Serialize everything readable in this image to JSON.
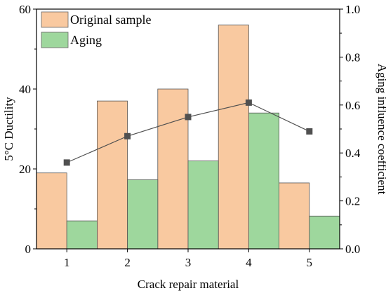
{
  "chart_data": {
    "type": "bar",
    "categories": [
      "1",
      "2",
      "3",
      "4",
      "5"
    ],
    "series": [
      {
        "name": "Original sample",
        "values": [
          19,
          37,
          40,
          56,
          16.5
        ],
        "color": "#f9c9a0",
        "axis": "left"
      },
      {
        "name": "Aging",
        "values": [
          7,
          17.3,
          22,
          34,
          8.2
        ],
        "color": "#9ed79d",
        "axis": "left"
      }
    ],
    "line_series": {
      "values": [
        0.36,
        0.47,
        0.55,
        0.61,
        0.49
      ],
      "axis": "right",
      "color": "#505050"
    },
    "xlabel": "Crack repair material",
    "ylabel": "5°C Ductility",
    "ylabel_right": "Aging influence coefficient",
    "ylim": [
      0,
      60
    ],
    "ylim_right": [
      0,
      1.0
    ],
    "yticks": [
      "0",
      "20",
      "40",
      "60"
    ],
    "yticks_right": [
      "0.0",
      "0.2",
      "0.4",
      "0.6",
      "0.8",
      "1.0"
    ],
    "legend_position": "top-left",
    "grid": false
  }
}
